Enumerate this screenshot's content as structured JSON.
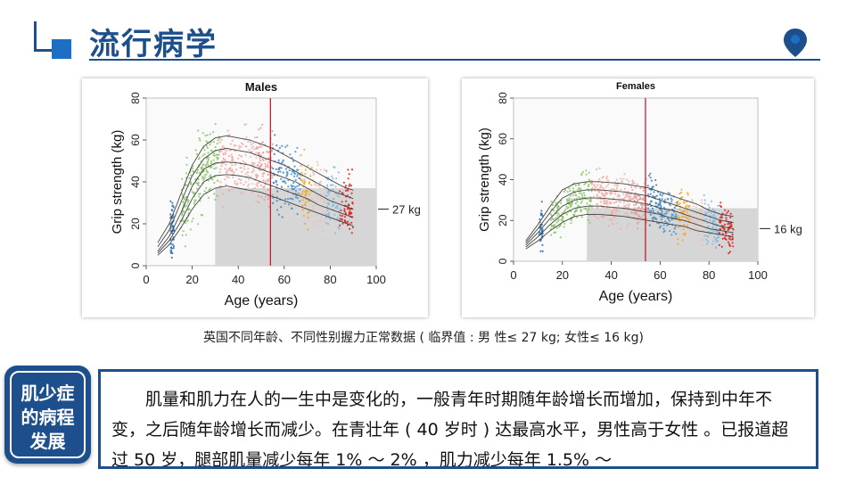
{
  "header": {
    "title": "流行病学"
  },
  "charts": [
    {
      "title": "Males",
      "xlabel": "Age (years)",
      "ylabel": "Grip strength (kg)",
      "x_ticks": [
        "0",
        "20",
        "40",
        "60",
        "80",
        "100"
      ],
      "y_ticks": [
        "0",
        "20",
        "40",
        "60",
        "80"
      ],
      "threshold_label": "27 kg"
    },
    {
      "title": "Females",
      "xlabel": "Age (years)",
      "ylabel": "Grip strength (kg)",
      "x_ticks": [
        "0",
        "20",
        "40",
        "60",
        "80",
        "100"
      ],
      "y_ticks": [
        "0",
        "20",
        "40",
        "60",
        "80"
      ],
      "threshold_label": "16 kg"
    }
  ],
  "chart_data": [
    {
      "type": "scatter",
      "title": "Males",
      "xlabel": "Age (years)",
      "ylabel": "Grip strength (kg)",
      "xlim": [
        0,
        100
      ],
      "ylim": [
        0,
        80
      ],
      "threshold": 27,
      "centile_curves": [
        {
          "x": [
            5,
            10,
            15,
            20,
            25,
            30,
            35,
            40,
            45,
            50,
            55,
            60,
            65,
            70,
            75,
            80,
            85,
            90
          ],
          "y": [
            7,
            14,
            25,
            38,
            46,
            49,
            49.5,
            49,
            48,
            46,
            44,
            42,
            40,
            37,
            34,
            31,
            29,
            27
          ]
        },
        {
          "x": [
            5,
            10,
            15,
            20,
            25,
            30,
            35,
            40,
            45,
            50,
            55,
            60,
            65,
            70,
            75,
            80,
            85,
            90
          ],
          "y": [
            9,
            17,
            30,
            43,
            51,
            55,
            56,
            55,
            54,
            52,
            50,
            48,
            45,
            42,
            39,
            36,
            34,
            32
          ]
        },
        {
          "x": [
            5,
            10,
            15,
            20,
            25,
            30,
            35,
            40,
            45,
            50,
            55,
            60,
            65,
            70,
            75,
            80,
            85,
            90
          ],
          "y": [
            11,
            20,
            34,
            48,
            57,
            61,
            62,
            61,
            60,
            58,
            56,
            53,
            50,
            47,
            44,
            41,
            38,
            36
          ]
        },
        {
          "x": [
            5,
            10,
            15,
            20,
            25,
            30,
            35,
            40,
            45,
            50,
            55,
            60,
            65,
            70,
            75,
            80,
            85,
            90
          ],
          "y": [
            6,
            12,
            21,
            32,
            40,
            43,
            43.5,
            43,
            42,
            40,
            38,
            36,
            34,
            32,
            29,
            27,
            25,
            23
          ]
        },
        {
          "x": [
            5,
            10,
            15,
            20,
            25,
            30,
            35,
            40,
            45,
            50,
            55,
            60,
            65,
            70,
            75,
            80,
            85,
            90
          ],
          "y": [
            5,
            10,
            18,
            27,
            34,
            37,
            38,
            37,
            36,
            35,
            33,
            31,
            29,
            27,
            25,
            23,
            21,
            19
          ]
        }
      ]
    },
    {
      "type": "scatter",
      "title": "Females",
      "xlabel": "Age (years)",
      "ylabel": "Grip strength (kg)",
      "xlim": [
        0,
        100
      ],
      "ylim": [
        0,
        80
      ],
      "threshold": 16,
      "centile_curves": [
        {
          "x": [
            5,
            10,
            15,
            20,
            25,
            30,
            35,
            40,
            45,
            50,
            55,
            60,
            65,
            70,
            75,
            80,
            85,
            90
          ],
          "y": [
            8,
            14,
            21,
            27,
            30,
            31,
            31,
            30.5,
            30,
            29,
            28,
            26,
            25,
            23,
            21,
            19,
            17,
            16
          ]
        },
        {
          "x": [
            5,
            10,
            15,
            20,
            25,
            30,
            35,
            40,
            45,
            50,
            55,
            60,
            65,
            70,
            75,
            80,
            85,
            90
          ],
          "y": [
            9,
            16,
            24,
            31,
            34,
            35,
            35,
            34.5,
            34,
            33,
            32,
            30,
            28,
            26,
            24,
            22,
            20,
            19
          ]
        },
        {
          "x": [
            5,
            10,
            15,
            20,
            25,
            30,
            35,
            40,
            45,
            50,
            55,
            60,
            65,
            70,
            75,
            80,
            85,
            90
          ],
          "y": [
            10,
            18,
            27,
            35,
            38,
            39,
            39,
            38.5,
            38,
            37,
            36,
            34,
            32,
            30,
            28,
            25,
            23,
            22
          ]
        },
        {
          "x": [
            5,
            10,
            15,
            20,
            25,
            30,
            35,
            40,
            45,
            50,
            55,
            60,
            65,
            70,
            75,
            80,
            85,
            90
          ],
          "y": [
            7,
            12,
            18,
            23,
            26,
            27,
            27,
            26.5,
            26,
            25,
            24,
            23,
            21,
            20,
            18,
            16,
            15,
            14
          ]
        },
        {
          "x": [
            5,
            10,
            15,
            20,
            25,
            30,
            35,
            40,
            45,
            50,
            55,
            60,
            65,
            70,
            75,
            80,
            85,
            90
          ],
          "y": [
            6,
            10,
            15,
            19,
            22,
            23,
            23,
            22.5,
            22,
            21,
            20,
            19,
            18,
            17,
            15,
            14,
            13,
            12
          ]
        }
      ]
    }
  ],
  "caption": "英国不同年龄、不同性别握力正常数据 ( 临界值 : 男 性≤ 27 kg;  女性≤ 16 kg)",
  "badge": {
    "line1": "肌少症",
    "line2": "的病程",
    "line3": "发展"
  },
  "body_text": "肌量和肌力在人的一生中是变化的，一般青年时期随年龄增长而增加，保持到中年不变，之后随年龄增长而减少。在青壮年 ( 40  岁时 ) 达最高水平，男性高于女性 。已报道超过  50  岁，腿部肌量减少每年  1%   ～  2%   ，肌力减少每年  1.5%   ～",
  "colors": {
    "brand": "#1d4f8c",
    "accent": "#1d6fc4"
  }
}
